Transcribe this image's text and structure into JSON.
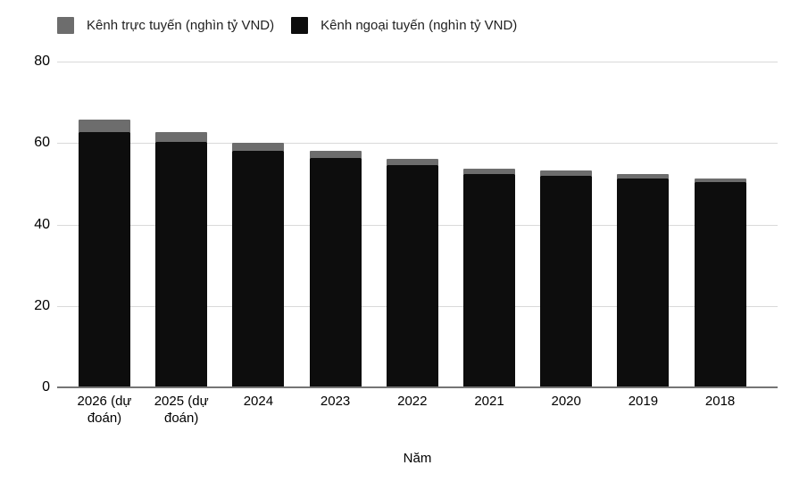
{
  "chart_data": {
    "type": "bar",
    "stacked": true,
    "title": "",
    "xlabel": "Năm",
    "ylabel": "",
    "ylim": [
      0,
      80
    ],
    "yticks": [
      80,
      60,
      40,
      20,
      0
    ],
    "grid": true,
    "legend_position": "top",
    "categories": [
      "2026 (dự đoán)",
      "2025 (dự đoán)",
      "2024",
      "2023",
      "2022",
      "2021",
      "2020",
      "2019",
      "2018"
    ],
    "series": [
      {
        "name": "Kênh trực tuyến (nghìn tỷ VND)",
        "color": "#6d6d6d",
        "stack_position": "top",
        "values": [
          2.9,
          2.5,
          2.0,
          1.7,
          1.5,
          1.4,
          1.2,
          1.0,
          0.9
        ]
      },
      {
        "name": "Kênh ngoại tuyến (nghìn tỷ VND)",
        "color": "#0d0d0d",
        "stack_position": "bottom",
        "values": [
          62.8,
          60.3,
          58.0,
          56.4,
          54.6,
          52.4,
          52.0,
          51.4,
          50.4
        ]
      }
    ]
  },
  "colors": {
    "background": "#ffffff",
    "gridline": "#d9d9d9",
    "axis_line": "#757575",
    "axis_text": "#000000",
    "legend_text": "#212121"
  }
}
